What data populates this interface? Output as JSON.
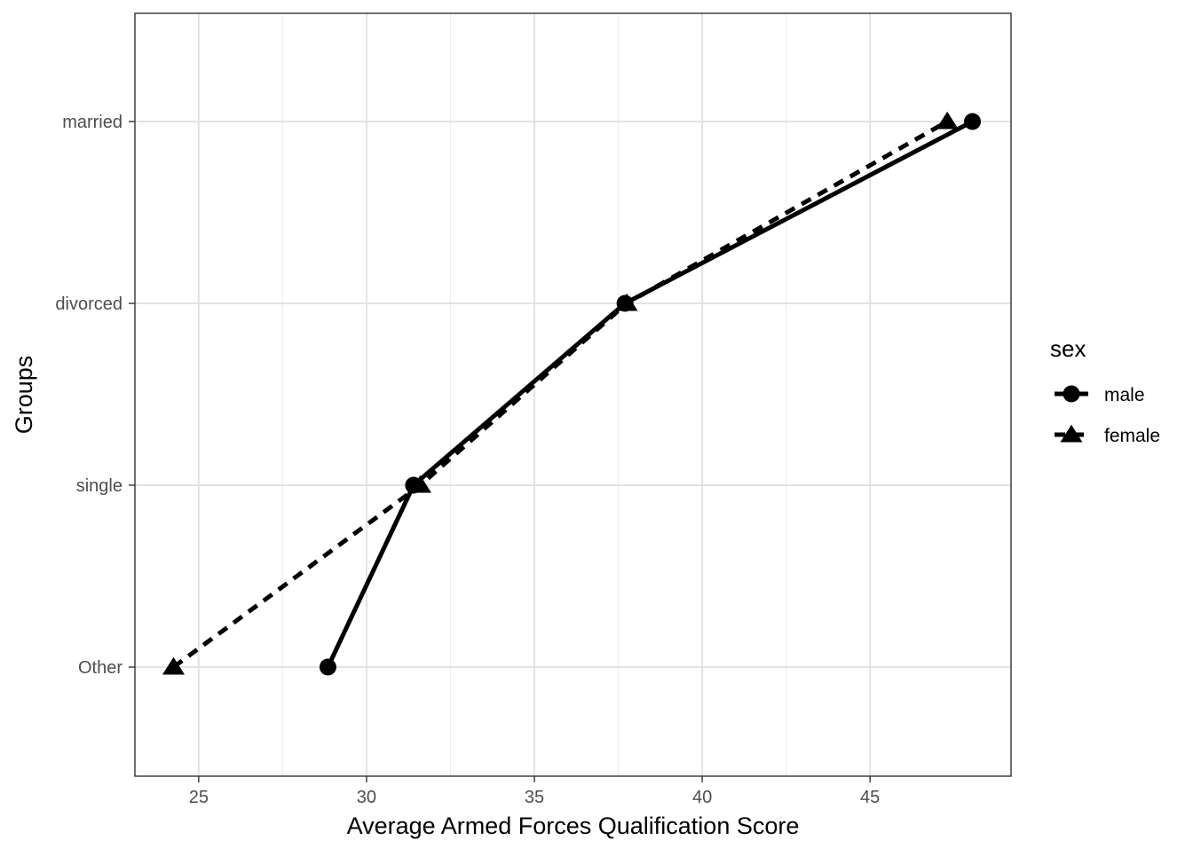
{
  "chart_data": {
    "type": "line",
    "title": "",
    "xlabel": "Average Armed Forces Qualification Score",
    "ylabel": "Groups",
    "categories": [
      "Other",
      "single",
      "divorced",
      "married"
    ],
    "xlim": [
      23.1,
      49.2
    ],
    "x_ticks": [
      25,
      30,
      35,
      40,
      45
    ],
    "grid": true,
    "legend": {
      "title": "sex",
      "placement": "right"
    },
    "series": [
      {
        "name": "male",
        "marker": "circle",
        "linestyle": "solid",
        "points": [
          {
            "group": "Other",
            "x": 28.85
          },
          {
            "group": "single",
            "x": 31.4
          },
          {
            "group": "divorced",
            "x": 37.7
          },
          {
            "group": "married",
            "x": 48.05
          }
        ]
      },
      {
        "name": "female",
        "marker": "triangle",
        "linestyle": "dashed",
        "points": [
          {
            "group": "Other",
            "x": 24.25
          },
          {
            "group": "single",
            "x": 31.6
          },
          {
            "group": "divorced",
            "x": 37.75
          },
          {
            "group": "married",
            "x": 47.3
          }
        ]
      }
    ]
  }
}
